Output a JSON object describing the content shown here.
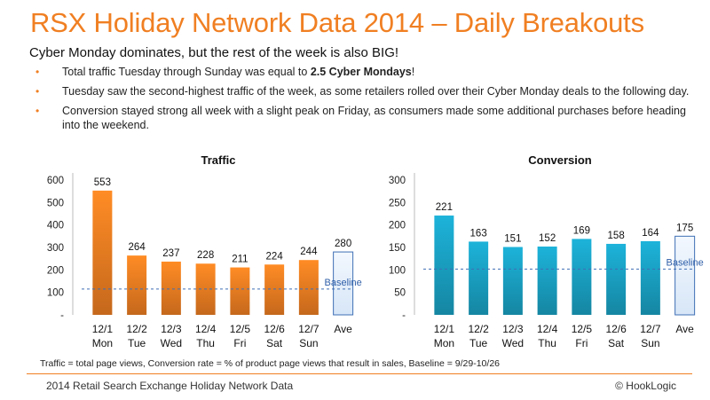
{
  "header": {
    "title": "RSX Holiday Network Data 2014 – Daily Breakouts",
    "subtitle": "Cyber Monday dominates, but the rest of the week is also BIG!"
  },
  "bullets": [
    {
      "pre": "Total traffic Tuesday through Sunday was equal to ",
      "bold": "2.5 Cyber Mondays",
      "post": "!"
    },
    {
      "pre": "Tuesday saw the second-highest traffic of the week, as some retailers rolled over their Cyber Monday deals to the following day.",
      "bold": "",
      "post": ""
    },
    {
      "pre": "Conversion stayed strong all week with a slight peak on Friday, as consumers made some additional purchases before heading into the weekend.",
      "bold": "",
      "post": ""
    }
  ],
  "chart_data": [
    {
      "type": "bar",
      "title": "Traffic",
      "categories": [
        [
          "12/1",
          "Mon"
        ],
        [
          "12/2",
          "Tue"
        ],
        [
          "12/3",
          "Wed"
        ],
        [
          "12/4",
          "Thu"
        ],
        [
          "12/5",
          "Fri"
        ],
        [
          "12/6",
          "Sat"
        ],
        [
          "12/7",
          "Sun"
        ],
        [
          "",
          "Ave"
        ]
      ],
      "values": [
        553,
        264,
        237,
        228,
        211,
        224,
        244,
        280
      ],
      "yticks": [
        "-",
        "100",
        "200",
        "300",
        "400",
        "500",
        "600"
      ],
      "ylim": [
        0,
        600
      ],
      "baseline": {
        "label": "Baseline",
        "value": 115
      },
      "bar_color": "#f07f22",
      "average_color": "#d7e6f7"
    },
    {
      "type": "bar",
      "title": "Conversion",
      "categories": [
        [
          "12/1",
          "Mon"
        ],
        [
          "12/2",
          "Tue"
        ],
        [
          "12/3",
          "Wed"
        ],
        [
          "12/4",
          "Thu"
        ],
        [
          "12/5",
          "Fri"
        ],
        [
          "12/6",
          "Sat"
        ],
        [
          "12/7",
          "Sun"
        ],
        [
          "",
          "Ave"
        ]
      ],
      "values": [
        221,
        163,
        151,
        152,
        169,
        158,
        164,
        175
      ],
      "yticks": [
        "-",
        "50",
        "100",
        "150",
        "200",
        "250",
        "300"
      ],
      "ylim": [
        0,
        300
      ],
      "baseline": {
        "label": "Baseline",
        "value": 102
      },
      "bar_color": "#1aa3c6",
      "average_color": "#d7e6f7"
    }
  ],
  "footnote": "Traffic = total page views, Conversion rate = % of product page views that result in sales, Baseline = 9/29-10/26",
  "footer": {
    "left": "2014 Retail Search Exchange Holiday Network Data",
    "right": "© HookLogic"
  }
}
